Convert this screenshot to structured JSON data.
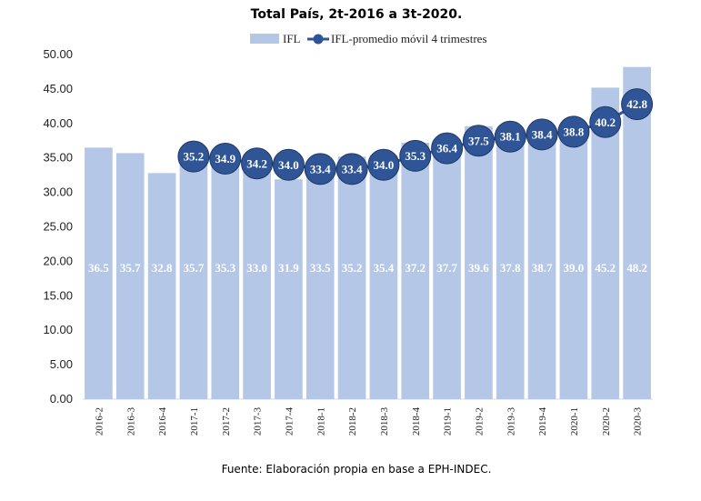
{
  "chart_data": {
    "type": "bar",
    "title": "Total País, 2t-2016 a 3t-2020.",
    "source": "Fuente: Elaboración propia en base a EPH-INDEC.",
    "categories": [
      "2016-2",
      "2016-3",
      "2016-4",
      "2017-1",
      "2017-2",
      "2017-3",
      "2017-4",
      "2018-1",
      "2018-2",
      "2018-3",
      "2018-4",
      "2019-1",
      "2019-2",
      "2019-3",
      "2019-4",
      "2020-1",
      "2020-2",
      "2020-3"
    ],
    "series": [
      {
        "name": "IFL",
        "type": "bar",
        "color": "#b4c7e7",
        "values": [
          36.5,
          35.7,
          32.8,
          35.7,
          35.3,
          33.0,
          31.9,
          33.5,
          35.2,
          35.4,
          37.2,
          37.7,
          39.6,
          37.8,
          38.7,
          39.0,
          45.2,
          48.2
        ],
        "labels": [
          "36.5",
          "35.7",
          "32.8",
          "35.7",
          "35.3",
          "33.0",
          "31.9",
          "33.5",
          "35.2",
          "35.4",
          "37.2",
          "37.7",
          "39.6",
          "37.8",
          "38.7",
          "39.0",
          "45.2",
          "48.2"
        ]
      },
      {
        "name": "IFL-promedio móvil 4 trimestres",
        "type": "line",
        "color": "#2f5597",
        "values": [
          null,
          null,
          null,
          35.2,
          34.9,
          34.2,
          34.0,
          33.4,
          33.4,
          34.0,
          35.3,
          36.4,
          37.5,
          38.1,
          38.4,
          38.8,
          40.2,
          42.8
        ],
        "labels": [
          null,
          null,
          null,
          "35.2",
          "34.9",
          "34.2",
          "34.0",
          "33.4",
          "33.4",
          "34.0",
          "35.3",
          "36.4",
          "37.5",
          "38.1",
          "38.4",
          "38.8",
          "40.2",
          "42.8"
        ]
      }
    ],
    "yticks": [
      "0.00",
      "5.00",
      "10.00",
      "15.00",
      "20.00",
      "25.00",
      "30.00",
      "35.00",
      "40.00",
      "45.00",
      "50.00"
    ],
    "ylim": [
      0,
      50
    ],
    "xlabel": "",
    "ylabel": "",
    "grid": false,
    "legend_position": "top-center"
  }
}
